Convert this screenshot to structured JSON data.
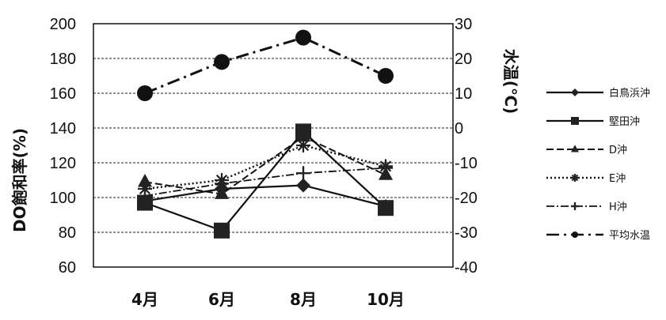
{
  "chart_data": {
    "type": "line",
    "categories": [
      "4月",
      "6月",
      "8月",
      "10月"
    ],
    "ylabel": "DO飽和率(%)",
    "y2label": "水温(℃)",
    "ylim": [
      60,
      200
    ],
    "y2lim": [
      -40,
      30
    ],
    "yticks": [
      "200",
      "180",
      "160",
      "140",
      "120",
      "100",
      "80",
      "60"
    ],
    "y2ticks": [
      "30",
      "20",
      "10",
      "0",
      "-10",
      "-20",
      "-30",
      "-40"
    ],
    "grid": "horizontal dashed",
    "legend_position": "right",
    "series": [
      {
        "name": "白鳥浜沖",
        "axis": "left",
        "style": "solid",
        "marker": "diamond",
        "values": [
          98,
          105,
          107,
          95
        ]
      },
      {
        "name": "堅田沖",
        "axis": "left",
        "style": "solid",
        "marker": "square",
        "values": [
          97,
          81,
          138,
          94
        ]
      },
      {
        "name": "D沖",
        "axis": "left",
        "style": "dashed",
        "marker": "triangle",
        "values": [
          109,
          102,
          135,
          113
        ]
      },
      {
        "name": "E沖",
        "axis": "left",
        "style": "dotted",
        "marker": "asterisk",
        "values": [
          105,
          110,
          130,
          118
        ]
      },
      {
        "name": "H沖",
        "axis": "left",
        "style": "dashdot",
        "marker": "plus",
        "values": [
          101,
          108,
          114,
          117
        ]
      },
      {
        "name": "平均水温",
        "axis": "right",
        "style": "dashdot-long",
        "marker": "circle",
        "values": [
          10,
          19,
          26,
          15
        ]
      }
    ]
  }
}
